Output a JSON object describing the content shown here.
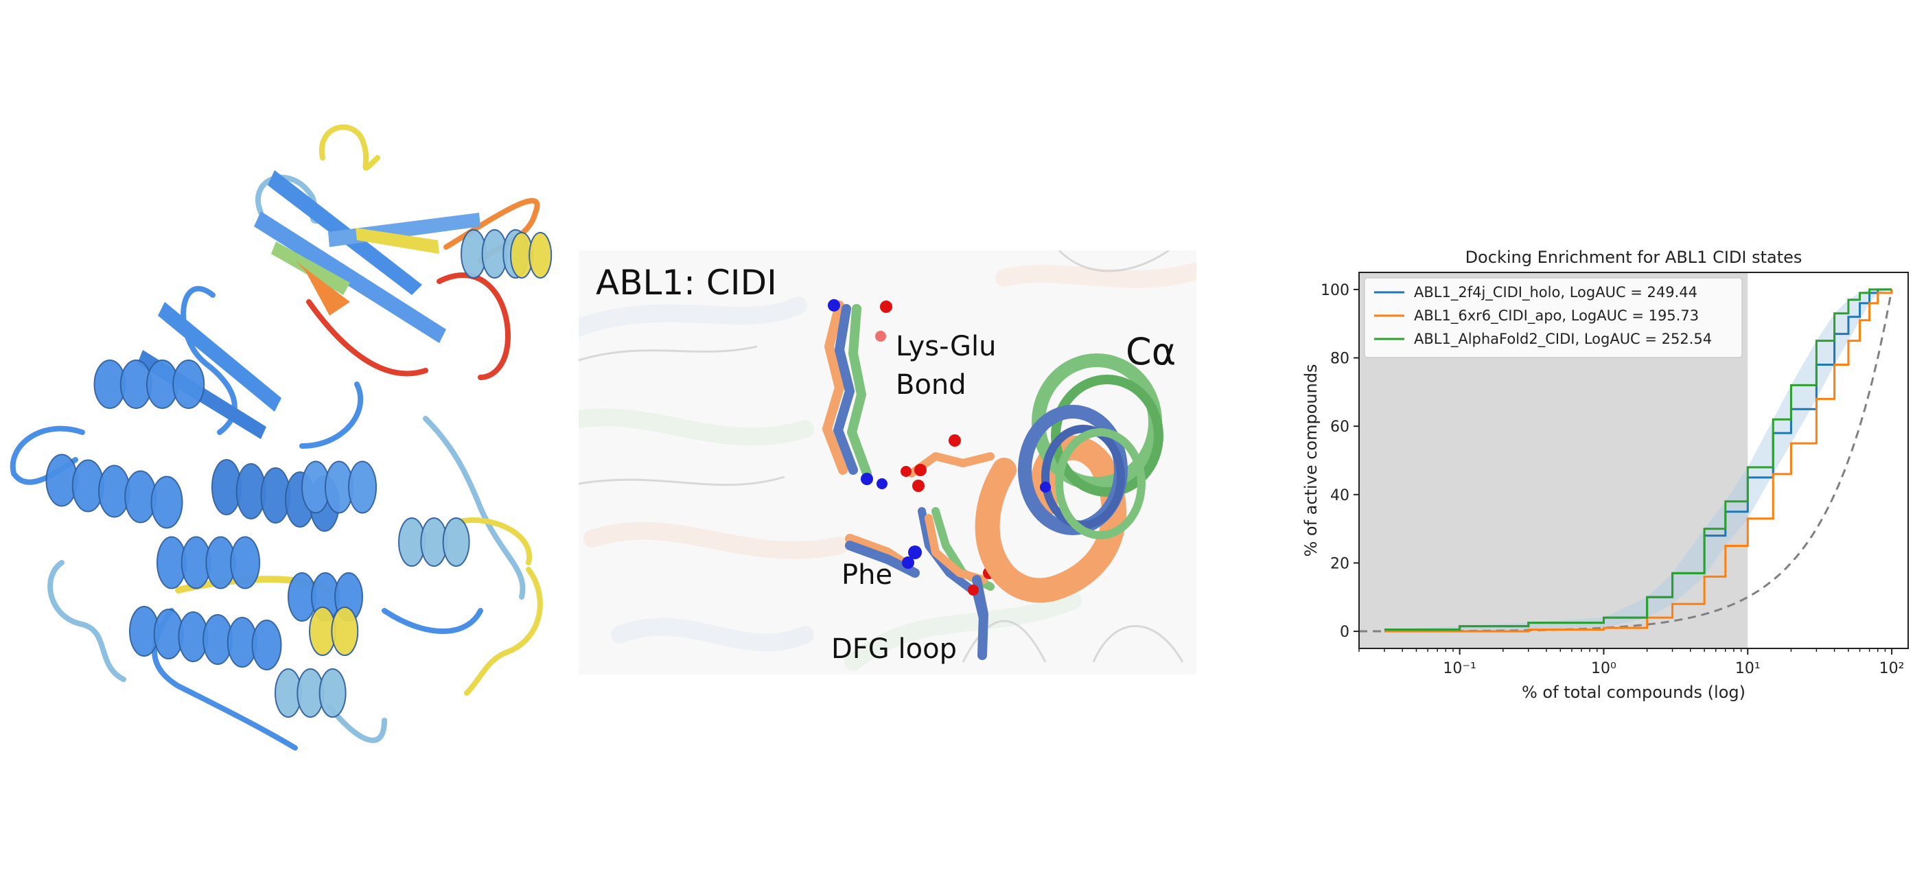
{
  "colors": {
    "protein_blue": "#4a8fe6",
    "protein_lightblue": "#8dc0e0",
    "protein_yellow": "#e8d84a",
    "protein_orange": "#f08a3a",
    "protein_red": "#e0402c",
    "holo": "#1f77b4",
    "apo": "#ff7f0e",
    "alphafold": "#2ca02c",
    "random": "#808080",
    "shade": "#d9d9d9"
  },
  "pocket": {
    "title": "ABL1: CIDI",
    "label_lysglu_line1": "Lys-Glu",
    "label_lysglu_line2": "Bond",
    "label_calpha": "Cα",
    "label_phe": "Phe",
    "label_dfg": "DFG loop"
  },
  "chart_data": {
    "type": "line",
    "title": "Docking Enrichment for ABL1 CIDI states",
    "xlabel": "%  of total compounds (log)",
    "ylabel": "% of active compounds",
    "xscale": "log",
    "xlim": [
      0.02,
      130
    ],
    "ylim": [
      -5,
      105
    ],
    "xticks": [
      0.1,
      1,
      10,
      100
    ],
    "xtick_labels": [
      "10⁻¹",
      "10⁰",
      "10¹",
      "10²"
    ],
    "yticks": [
      0,
      20,
      40,
      60,
      80,
      100
    ],
    "shaded_region": [
      0.02,
      10
    ],
    "legend_position": "upper-left",
    "series": [
      {
        "name": "ABL1_2f4j_CIDI_holo, LogAUC = 249.44",
        "color": "#1f77b4",
        "x": [
          0.03,
          0.1,
          0.3,
          1,
          2,
          3,
          5,
          7,
          10,
          15,
          20,
          30,
          40,
          50,
          60,
          70,
          80,
          100
        ],
        "y": [
          0.5,
          1.5,
          2.5,
          4,
          10,
          17,
          28,
          35,
          45,
          58,
          65,
          78,
          87,
          92,
          96,
          99,
          100,
          100
        ]
      },
      {
        "name": "ABL1_6xr6_CIDI_apo, LogAUC = 195.73",
        "color": "#ff7f0e",
        "x": [
          0.03,
          0.1,
          0.3,
          1,
          2,
          3,
          5,
          7,
          10,
          15,
          20,
          30,
          40,
          50,
          60,
          70,
          80,
          100
        ],
        "y": [
          0,
          0,
          0.5,
          1,
          4,
          8,
          16,
          25,
          33,
          46,
          55,
          68,
          78,
          85,
          91,
          96,
          99,
          100
        ]
      },
      {
        "name": "ABL1_AlphaFold2_CIDI, LogAUC = 252.54",
        "color": "#2ca02c",
        "x": [
          0.03,
          0.1,
          0.3,
          1,
          2,
          3,
          5,
          7,
          10,
          15,
          20,
          30,
          40,
          50,
          60,
          70,
          80,
          100
        ],
        "y": [
          0.5,
          1.5,
          2.5,
          4,
          10,
          17,
          30,
          38,
          48,
          62,
          72,
          85,
          93,
          97,
          99,
          100,
          100,
          100
        ]
      }
    ],
    "random_baseline": {
      "color": "#808080",
      "style": "dashed",
      "x": [
        0.02,
        0.05,
        0.1,
        0.3,
        1,
        3,
        10,
        20,
        40,
        60,
        80,
        100
      ],
      "y": [
        0.02,
        0.05,
        0.1,
        0.3,
        1,
        3,
        10,
        20,
        40,
        60,
        80,
        100
      ]
    }
  }
}
